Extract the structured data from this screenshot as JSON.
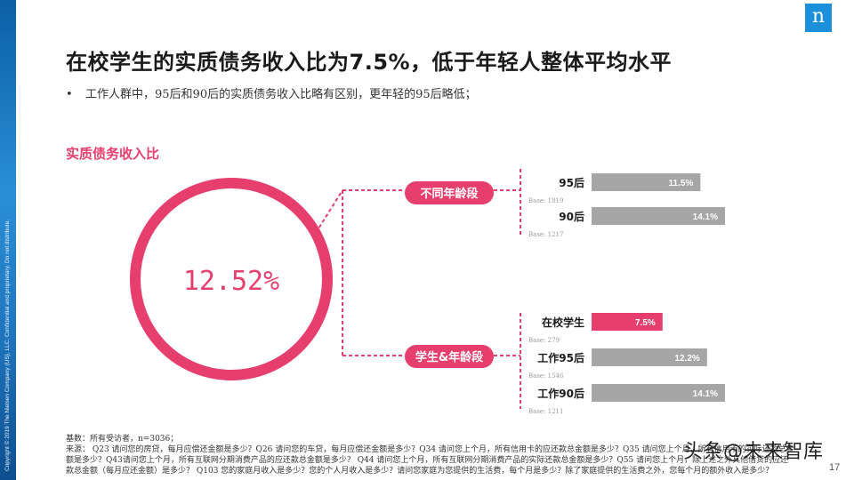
{
  "side_text": "Copyright © 2019 The Nielsen Company (US), LLC. Confidential and proprietary. Do not distribute.",
  "logo": "n",
  "title": "在校学生的实质债务收入比为7.5%，低于年轻人整体平均水平",
  "bullet": "工作人群中，95后和90后的实质债务收入比略有区别，更年轻的95后略低；",
  "section_label": "实质债务收入比",
  "circle_value": "12.52%",
  "groups": [
    {
      "label": "不同年龄段"
    },
    {
      "label": "学生&年龄段"
    }
  ],
  "colors": {
    "accent": "#e63e6d",
    "bar_gray": "#a6a6a6",
    "text": "#1a1a1a"
  },
  "chart_data": {
    "type": "bar",
    "orientation": "horizontal",
    "title": "实质债务收入比",
    "overall": "12.52%",
    "xlim": [
      0,
      14.1
    ],
    "groups": [
      {
        "name": "不同年龄段",
        "categories": [
          "95后",
          "90后"
        ],
        "values": [
          11.5,
          14.1
        ],
        "value_labels": [
          "11.5%",
          "14.1%"
        ],
        "bases": [
          "Base: 1819",
          "Base: 1217"
        ],
        "highlight": [
          false,
          false
        ]
      },
      {
        "name": "学生&年龄段",
        "categories": [
          "在校学生",
          "工作95后",
          "工作90后"
        ],
        "values": [
          7.5,
          12.2,
          14.1
        ],
        "value_labels": [
          "7.5%",
          "12.2%",
          "14.1%"
        ],
        "bases": [
          "Base: 279",
          "Base: 1546",
          "Base: 1211"
        ],
        "highlight": [
          true,
          false,
          false
        ]
      }
    ]
  },
  "footnotes": [
    "基数：所有受访者，n=3036；",
    "来源： Q23 请问您的房贷，每月应偿还金额是多少？Q26 请问您的车贷，每月应偿还金额是多少？Q34 请问您上个月，所有信用卡的应还款总金额是多少？Q35 请问您上个月，所有信用卡的实际还款总金",
    "额是多少？Q43请问您上个月，所有互联网分期消费产品的应还款总金额是多少？ Q44 请问您上个月，所有互联网分期消费产品的实际还款总金额是多少？Q55 请问您上个月，除上述之外其他借贷的应还",
    "款总金额（每月应还金额）是多少？ Q103 您的家庭月收入是多少？您的个人月收入是多少？请问您家庭为您提供的生活费，每个月是多少？除了家庭提供的生活费之外，您每个月的额外收入是多少？"
  ],
  "watermark": "头条@未来智库",
  "page_number": "17"
}
